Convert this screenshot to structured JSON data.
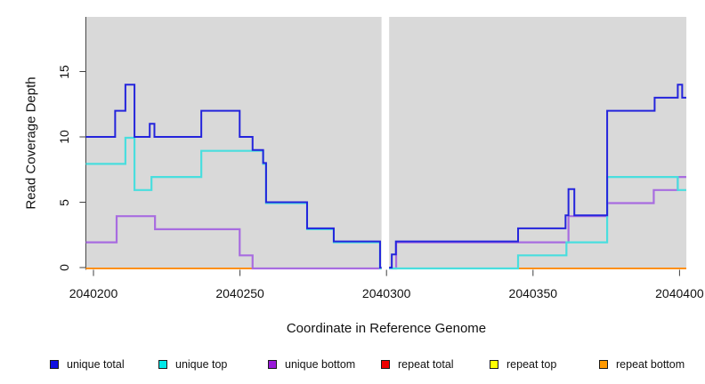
{
  "y_axis": {
    "label": "Read Coverage Depth",
    "ticks": [
      {
        "value": 0,
        "label": "0"
      },
      {
        "value": 5,
        "label": "5"
      },
      {
        "value": 10,
        "label": "10"
      },
      {
        "value": 15,
        "label": "15"
      }
    ]
  },
  "x_axis": {
    "label": "Coordinate in Reference Genome",
    "ticks": [
      {
        "value": 2040200,
        "label": "2040200"
      },
      {
        "value": 2040250,
        "label": "2040250"
      },
      {
        "value": 2040300,
        "label": "2040300"
      },
      {
        "value": 2040350,
        "label": "2040350"
      },
      {
        "value": 2040400,
        "label": "2040400"
      }
    ]
  },
  "chart_data": {
    "type": "line",
    "step": true,
    "title": "",
    "xlabel": "Coordinate in Reference Genome",
    "ylabel": "Read Coverage Depth",
    "x_range": [
      2040197.4,
      2040402.3
    ],
    "y_range": [
      0,
      19.2
    ],
    "plot_background": "#d9d9d9",
    "grid": false,
    "no_data_gap": [
      2040298.3,
      2040300.9
    ],
    "legend_position": "bottom",
    "legend": [
      {
        "label": "unique total",
        "color": "#1111e0"
      },
      {
        "label": "unique top",
        "color": "#00e8e8"
      },
      {
        "label": "unique bottom",
        "color": "#9919d9"
      },
      {
        "label": "repeat total",
        "color": "#ee0000"
      },
      {
        "label": "repeat top",
        "color": "#ffff00"
      },
      {
        "label": "repeat bottom",
        "color": "#ff9900"
      }
    ],
    "series": [
      {
        "name": "repeat total",
        "color": "#e31a1a",
        "width": 2,
        "dy": 1,
        "segments": [
          {
            "pts": [
              [
                2040197.4,
                0
              ]
            ],
            "end": 2040298.3
          },
          {
            "pts": [
              [
                2040300.9,
                0
              ]
            ],
            "end": 2040402.3
          }
        ]
      },
      {
        "name": "repeat top",
        "color": "#f2f20c",
        "width": 2,
        "dy": 1,
        "segments": [
          {
            "pts": [
              [
                2040197.4,
                0
              ]
            ],
            "end": 2040298.3
          },
          {
            "pts": [
              [
                2040300.9,
                0
              ]
            ],
            "end": 2040402.3
          }
        ]
      },
      {
        "name": "repeat bottom",
        "color": "#ff9010",
        "width": 2,
        "dy": 1,
        "segments": [
          {
            "pts": [
              [
                2040197.4,
                0
              ]
            ],
            "end": 2040298.3
          },
          {
            "pts": [
              [
                2040300.9,
                0
              ]
            ],
            "end": 2040402.3
          }
        ]
      },
      {
        "name": "unique bottom",
        "color": "#a86ce0",
        "width": 2.2,
        "dy": 1,
        "segments": [
          {
            "pts": [
              [
                2040197.4,
                2
              ],
              [
                2040207.9,
                4
              ],
              [
                2040221.0,
                3
              ],
              [
                2040249.9,
                1
              ],
              [
                2040254.3,
                0
              ]
            ],
            "end": 2040298.3
          },
          {
            "pts": [
              [
                2040300.9,
                0
              ],
              [
                2040303.3,
                2
              ],
              [
                2040362.1,
                4
              ],
              [
                2040375.3,
                5
              ],
              [
                2040391.2,
                6
              ],
              [
                2040399.4,
                7
              ]
            ],
            "end": 2040402.3
          }
        ]
      },
      {
        "name": "unique top",
        "color": "#49dede",
        "width": 2.2,
        "dy": 1,
        "segments": [
          {
            "pts": [
              [
                2040197.4,
                8
              ],
              [
                2040210.9,
                10
              ],
              [
                2040214.0,
                6
              ],
              [
                2040219.8,
                7
              ],
              [
                2040236.8,
                9
              ],
              [
                2040257.9,
                8
              ],
              [
                2040258.9,
                5
              ],
              [
                2040272.9,
                3
              ],
              [
                2040282.0,
                2
              ],
              [
                2040297.8,
                0
              ]
            ],
            "end": 2040298.3
          },
          {
            "pts": [
              [
                2040300.9,
                0
              ],
              [
                2040344.9,
                1
              ],
              [
                2040361.4,
                2
              ],
              [
                2040375.3,
                7
              ],
              [
                2040399.4,
                6
              ]
            ],
            "end": 2040402.3
          }
        ]
      },
      {
        "name": "unique total",
        "color": "#2424dc",
        "width": 2,
        "dy": 0,
        "segments": [
          {
            "pts": [
              [
                2040197.4,
                10
              ],
              [
                2040207.4,
                12
              ],
              [
                2040210.9,
                14
              ],
              [
                2040214.0,
                10
              ],
              [
                2040219.2,
                11
              ],
              [
                2040220.8,
                10
              ],
              [
                2040236.8,
                12
              ],
              [
                2040249.9,
                10
              ],
              [
                2040254.3,
                9
              ],
              [
                2040257.9,
                8
              ],
              [
                2040258.9,
                5
              ],
              [
                2040272.9,
                3
              ],
              [
                2040282.0,
                2
              ],
              [
                2040297.8,
                0
              ]
            ],
            "end": 2040298.3
          },
          {
            "pts": [
              [
                2040300.9,
                0
              ],
              [
                2040301.8,
                1
              ],
              [
                2040303.2,
                2
              ],
              [
                2040344.9,
                3
              ],
              [
                2040361.1,
                4
              ],
              [
                2040362.1,
                6
              ],
              [
                2040364.1,
                4
              ],
              [
                2040375.3,
                12
              ],
              [
                2040391.5,
                13
              ],
              [
                2040399.4,
                14
              ],
              [
                2040400.9,
                13
              ]
            ],
            "end": 2040402.3
          }
        ]
      }
    ]
  }
}
